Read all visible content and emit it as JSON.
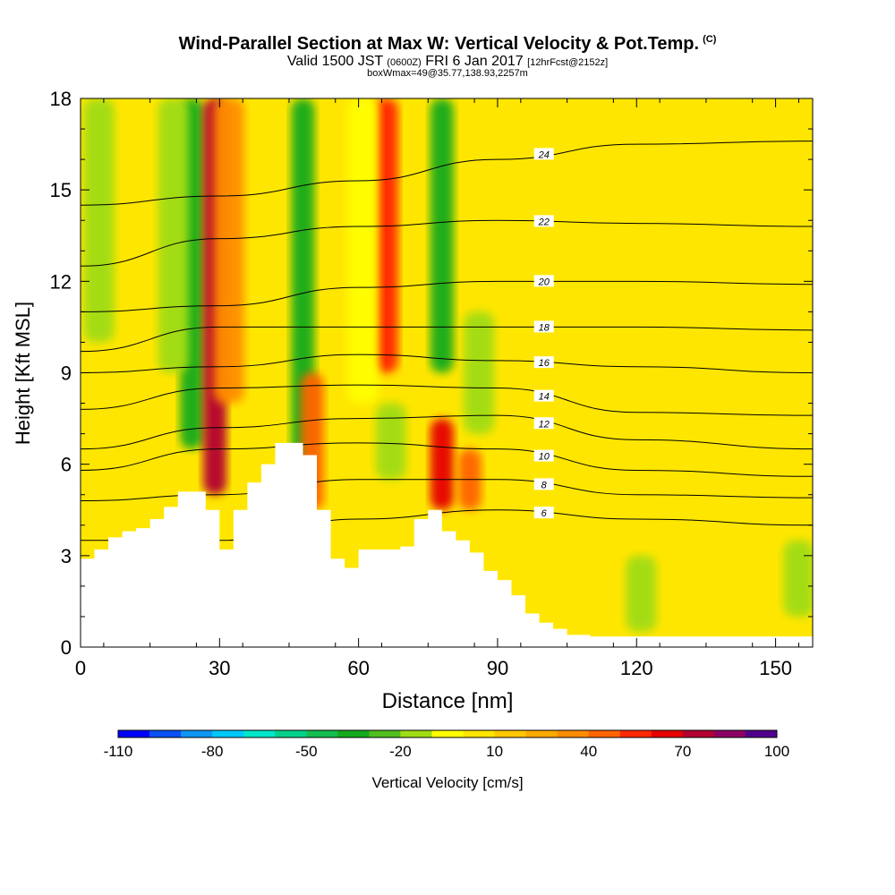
{
  "header": {
    "title": "Wind-Parallel Section at Max W: Vertical Velocity & Pot.Temp.",
    "title_sup": "(C)",
    "valid_prefix": "Valid 1500 JST",
    "valid_z": "(0600Z)",
    "valid_date": "FRI 6 Jan 2017",
    "valid_fcst": "[12hrFcst@2152z]",
    "box_info": "boxWmax=49@35.77,138.93,2257m"
  },
  "chart_data": {
    "type": "heatmap",
    "xlabel": "Distance [nm]",
    "ylabel": "Height [Kft MSL]",
    "xlim": [
      0,
      158
    ],
    "ylim": [
      0,
      18
    ],
    "x_ticks": [
      "0",
      "30",
      "60",
      "90",
      "120",
      "150"
    ],
    "y_ticks": [
      "0",
      "3",
      "6",
      "9",
      "12",
      "15",
      "18"
    ],
    "x_tick_values": [
      0,
      30,
      60,
      90,
      120,
      150
    ],
    "y_tick_values": [
      0,
      3,
      6,
      9,
      12,
      15,
      18
    ],
    "colorbar": {
      "label": "Vertical Velocity [cm/s]",
      "min": -110,
      "max": 100,
      "step": 10,
      "tick_labels": [
        "-110",
        "-80",
        "-50",
        "-20",
        "10",
        "40",
        "70",
        "100"
      ],
      "tick_values": [
        -110,
        -80,
        -50,
        -20,
        10,
        40,
        70,
        100
      ],
      "colors": [
        "#0000ff",
        "#0a50f5",
        "#0f96f5",
        "#00c8ff",
        "#00e6c8",
        "#00d28c",
        "#14be50",
        "#14aa1e",
        "#50be1e",
        "#a0dc14",
        "#ffff00",
        "#ffe600",
        "#ffc800",
        "#ffaa00",
        "#ff8c00",
        "#ff6400",
        "#ff2800",
        "#e60000",
        "#b40032",
        "#8c0064",
        "#50008c"
      ]
    },
    "background_value": 5,
    "vertical_velocity_features": [
      {
        "x": 24,
        "y0": 6.5,
        "y1": 18,
        "value": -40
      },
      {
        "x": 29,
        "y0": 5,
        "y1": 18,
        "value": 70
      },
      {
        "x": 32,
        "y0": 8,
        "y1": 18,
        "value": 30
      },
      {
        "x": 20,
        "y0": 9,
        "y1": 18,
        "value": -20
      },
      {
        "x": 48,
        "y0": 5,
        "y1": 18,
        "value": -40
      },
      {
        "x": 50,
        "y0": 4.5,
        "y1": 9,
        "value": 40
      },
      {
        "x": 66,
        "y0": 9,
        "y1": 18,
        "value": 50
      },
      {
        "x": 61,
        "y0": 8,
        "y1": 18,
        "value": -10
      },
      {
        "x": 78,
        "y0": 9,
        "y1": 18,
        "value": -40
      },
      {
        "x": 86,
        "y0": 7,
        "y1": 11,
        "value": -20
      },
      {
        "x": 67,
        "y0": 5.5,
        "y1": 8,
        "value": -20
      },
      {
        "x": 78,
        "y0": 4.5,
        "y1": 7.5,
        "value": 60
      },
      {
        "x": 84,
        "y0": 4.5,
        "y1": 6.5,
        "value": 40
      },
      {
        "x": 4,
        "y0": 10,
        "y1": 18,
        "value": -20
      },
      {
        "x": 121,
        "y0": 0.5,
        "y1": 3,
        "value": -20
      },
      {
        "x": 155,
        "y0": 1,
        "y1": 3.5,
        "value": -15
      }
    ],
    "theta_contours": [
      {
        "label": "6",
        "values": [
          3.5,
          3.5,
          4.2,
          4.5,
          4.2,
          4.0
        ]
      },
      {
        "label": "8",
        "values": [
          4.8,
          5.0,
          5.5,
          5.5,
          5.0,
          4.9
        ]
      },
      {
        "label": "10",
        "values": [
          5.8,
          6.5,
          6.7,
          6.5,
          5.8,
          5.6
        ]
      },
      {
        "label": "12",
        "values": [
          6.5,
          7.2,
          7.5,
          7.6,
          6.8,
          6.5
        ]
      },
      {
        "label": "14",
        "values": [
          7.8,
          8.5,
          8.6,
          8.5,
          7.7,
          7.6
        ]
      },
      {
        "label": "16",
        "values": [
          9.0,
          9.2,
          9.6,
          9.4,
          9.2,
          9.0
        ]
      },
      {
        "label": "18",
        "values": [
          9.7,
          10.5,
          10.5,
          10.5,
          10.5,
          10.4
        ]
      },
      {
        "label": "20",
        "values": [
          11.0,
          11.2,
          11.8,
          12.0,
          12.0,
          11.9
        ]
      },
      {
        "label": "22",
        "values": [
          12.5,
          13.4,
          13.8,
          14.0,
          13.9,
          13.8
        ]
      },
      {
        "label": "24",
        "values": [
          14.5,
          14.8,
          15.3,
          16.0,
          16.5,
          16.6
        ]
      }
    ],
    "contour_x_positions": [
      0,
      30,
      60,
      90,
      120,
      158
    ],
    "terrain": {
      "x": [
        0,
        3,
        6,
        9,
        12,
        15,
        18,
        21,
        24,
        27,
        28,
        30,
        33,
        36,
        39,
        42,
        45,
        48,
        51,
        54,
        57,
        60,
        63,
        66,
        69,
        72,
        75,
        78,
        81,
        84,
        87,
        90,
        93,
        96,
        99,
        102,
        105,
        110,
        120,
        130,
        140,
        150,
        158
      ],
      "height": [
        2.9,
        3.2,
        3.6,
        3.8,
        3.9,
        4.2,
        4.6,
        5.1,
        5.1,
        4.5,
        4.5,
        3.2,
        4.5,
        5.4,
        6.0,
        6.7,
        6.7,
        6.3,
        4.5,
        2.9,
        2.6,
        3.2,
        3.2,
        3.2,
        3.3,
        4.2,
        4.5,
        3.8,
        3.5,
        3.1,
        2.5,
        2.2,
        1.7,
        1.1,
        0.8,
        0.6,
        0.4,
        0.35,
        0.35,
        0.35,
        0.35,
        0.35,
        0.35
      ]
    }
  }
}
